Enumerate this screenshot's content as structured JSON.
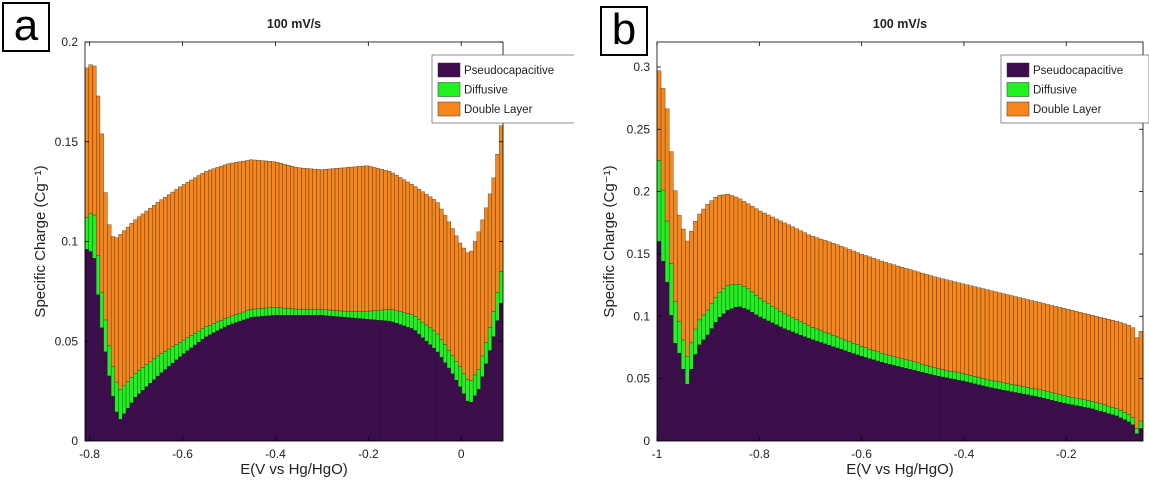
{
  "panels": [
    {
      "letter": "a",
      "title": "100 mV/s",
      "xlabel": "E(V vs Hg/HgO)",
      "ylabel": "Specific Charge (Cg⁻¹)",
      "legend": [
        "Pseudocapacitive",
        "Diffusive",
        "Double Layer"
      ]
    },
    {
      "letter": "b",
      "title": "100 mV/s",
      "xlabel": "E(V vs Hg/HgO)",
      "ylabel": "Specific Charge (Cg⁻¹)",
      "legend": [
        "Pseudocapacitive",
        "Diffusive",
        "Double Layer"
      ]
    }
  ],
  "colors": {
    "pseudocapacitive": "#3d0b4e",
    "diffusive": "#21f021",
    "double_layer": "#f7871c"
  },
  "chart_data": [
    {
      "type": "bar",
      "stacked": true,
      "title": "100 mV/s",
      "xlabel": "E(V vs Hg/HgO)",
      "ylabel": "Specific Charge (Cg⁻¹)",
      "xlim": [
        -0.81,
        0.09
      ],
      "ylim": [
        0,
        0.2
      ],
      "xticks": [
        "-0.8",
        "-0.6",
        "-0.4",
        "-0.2",
        "0"
      ],
      "yticks": [
        "0",
        "0.05",
        "0.1",
        "0.15",
        "0.2"
      ],
      "legend_position": "top-right",
      "series_names": [
        "Pseudocapacitive",
        "Diffusive",
        "Double Layer"
      ],
      "x_points": [
        -0.805,
        -0.79,
        -0.775,
        -0.765,
        -0.755,
        -0.745,
        -0.735,
        -0.7,
        -0.65,
        -0.6,
        -0.55,
        -0.5,
        -0.45,
        -0.4,
        -0.35,
        -0.3,
        -0.25,
        -0.2,
        -0.15,
        -0.1,
        -0.05,
        -0.02,
        0.0,
        0.02,
        0.04,
        0.06,
        0.075,
        0.088
      ],
      "pseudo_points": [
        0.096,
        0.094,
        0.06,
        0.045,
        0.03,
        0.018,
        0.01,
        0.022,
        0.033,
        0.043,
        0.052,
        0.058,
        0.062,
        0.063,
        0.063,
        0.063,
        0.062,
        0.061,
        0.06,
        0.056,
        0.045,
        0.035,
        0.027,
        0.018,
        0.026,
        0.042,
        0.055,
        0.069
      ],
      "diffusive_points": [
        0.016,
        0.022,
        0.018,
        0.016,
        0.015,
        0.015,
        0.015,
        0.012,
        0.01,
        0.007,
        0.005,
        0.004,
        0.004,
        0.004,
        0.003,
        0.003,
        0.003,
        0.004,
        0.006,
        0.007,
        0.009,
        0.009,
        0.01,
        0.011,
        0.01,
        0.011,
        0.013,
        0.016
      ],
      "total_points": [
        0.187,
        0.19,
        0.162,
        0.125,
        0.105,
        0.101,
        0.103,
        0.111,
        0.12,
        0.128,
        0.135,
        0.139,
        0.141,
        0.14,
        0.137,
        0.136,
        0.137,
        0.138,
        0.135,
        0.128,
        0.12,
        0.108,
        0.099,
        0.093,
        0.105,
        0.12,
        0.135,
        0.158
      ]
    },
    {
      "type": "bar",
      "stacked": true,
      "title": "100 mV/s",
      "xlabel": "E(V vs Hg/HgO)",
      "ylabel": "Specific Charge (Cg⁻¹)",
      "xlim": [
        -1.0,
        -0.05
      ],
      "ylim": [
        0,
        0.32
      ],
      "xticks": [
        "-1",
        "-0.8",
        "-0.6",
        "-0.4",
        "-0.2"
      ],
      "yticks": [
        "0",
        "0.05",
        "0.1",
        "0.15",
        "0.2",
        "0.25",
        "0.3"
      ],
      "legend_position": "top-right",
      "series_names": [
        "Pseudocapacitive",
        "Diffusive",
        "Double Layer"
      ],
      "x_points": [
        -0.995,
        -0.98,
        -0.965,
        -0.955,
        -0.94,
        -0.92,
        -0.9,
        -0.88,
        -0.86,
        -0.84,
        -0.82,
        -0.8,
        -0.75,
        -0.7,
        -0.65,
        -0.6,
        -0.55,
        -0.5,
        -0.45,
        -0.4,
        -0.35,
        -0.3,
        -0.25,
        -0.2,
        -0.15,
        -0.1,
        -0.07,
        -0.06,
        -0.053
      ],
      "pseudo_points": [
        0.16,
        0.13,
        0.08,
        0.07,
        0.045,
        0.075,
        0.085,
        0.098,
        0.105,
        0.108,
        0.105,
        0.1,
        0.09,
        0.082,
        0.075,
        0.068,
        0.062,
        0.057,
        0.052,
        0.048,
        0.043,
        0.039,
        0.035,
        0.03,
        0.026,
        0.02,
        0.014,
        0.005,
        0.01
      ],
      "diffusive_points": [
        0.065,
        0.05,
        0.035,
        0.025,
        0.022,
        0.02,
        0.02,
        0.02,
        0.02,
        0.018,
        0.017,
        0.015,
        0.012,
        0.01,
        0.009,
        0.008,
        0.007,
        0.007,
        0.006,
        0.006,
        0.006,
        0.006,
        0.006,
        0.006,
        0.006,
        0.006,
        0.006,
        0.004,
        0.006
      ],
      "total_points": [
        0.297,
        0.27,
        0.205,
        0.18,
        0.16,
        0.18,
        0.19,
        0.197,
        0.198,
        0.195,
        0.19,
        0.185,
        0.175,
        0.165,
        0.158,
        0.15,
        0.143,
        0.137,
        0.131,
        0.126,
        0.121,
        0.116,
        0.111,
        0.106,
        0.101,
        0.096,
        0.092,
        0.082,
        0.088
      ]
    }
  ]
}
